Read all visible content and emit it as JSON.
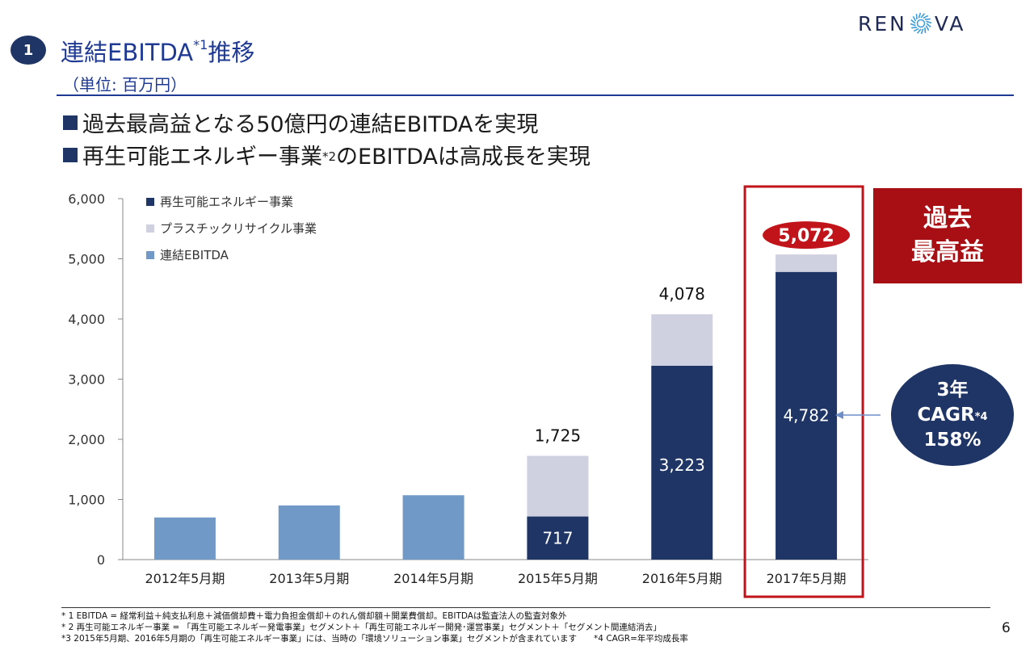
{
  "logo": {
    "text_left": "REN",
    "text_right": "VA"
  },
  "header": {
    "badge": "1",
    "title_main": "連結EBITDA",
    "title_sup": "*1",
    "title_tail": "推移",
    "unit": "（単位: 百万円）"
  },
  "bullets": [
    {
      "text": "過去最高益となる50億円の連結EBITDAを実現"
    },
    {
      "text_a": "再生可能エネルギー事業",
      "sup": "*2",
      "text_b": "のEBITDAは高成長を実現"
    }
  ],
  "callout": {
    "line1": "過去",
    "line2": "最高益"
  },
  "cagr": {
    "line1": "3年",
    "line2": "CAGR",
    "line2_sup": "*4",
    "line3": "158%"
  },
  "chart_data": {
    "type": "bar",
    "stacked": true,
    "categories": [
      "2012年5月期",
      "2013年5月期",
      "2014年5月期",
      "2015年5月期",
      "2016年5月期",
      "2017年5月期"
    ],
    "series": [
      {
        "name": "再生可能エネルギー事業",
        "color": "#1f3566",
        "values": [
          null,
          null,
          null,
          717,
          3223,
          4782
        ]
      },
      {
        "name": "プラスチックリサイクル事業",
        "color": "#cfd0e0",
        "values": [
          null,
          null,
          null,
          1008,
          855,
          290
        ]
      },
      {
        "name": "連結EBITDA",
        "color": "#7099c8",
        "values": [
          700,
          900,
          1070,
          null,
          null,
          null
        ]
      }
    ],
    "totals": [
      null,
      null,
      null,
      1725,
      4078,
      5072
    ],
    "total_labels": [
      "",
      "",
      "",
      "1,725",
      "4,078",
      "5,072"
    ],
    "segment_labels": [
      "",
      "",
      "",
      "717",
      "3,223",
      "4,782"
    ],
    "ylim": [
      0,
      6000
    ],
    "yticks": [
      0,
      1000,
      2000,
      3000,
      4000,
      5000,
      6000
    ],
    "ytick_labels": [
      "0",
      "1,000",
      "2,000",
      "3,000",
      "4,000",
      "5,000",
      "6,000"
    ],
    "legend_position": "top-left",
    "highlight_category": "2017年5月期",
    "highlight_color": "#c0131a"
  },
  "footnotes": [
    "* 1 EBITDA = 経常利益＋純支払利息＋減価償却費＋電力負担金償却＋のれん償却額＋開業費償却。EBITDAは監査法人の監査対象外",
    "* 2 再生可能エネルギー事業 = 「再生可能エネルギー発電事業」セグメント＋「再生可能エネルギー開発･運営事業」セグメント＋「セグメント間連結消去」",
    "*3 2015年5月期、2016年5月期の「再生可能エネルギー事業」には、当時の「環境ソリューション事業」セグメントが含まれています　　*4 CAGR=年平均成長率"
  ],
  "page_number": "6"
}
